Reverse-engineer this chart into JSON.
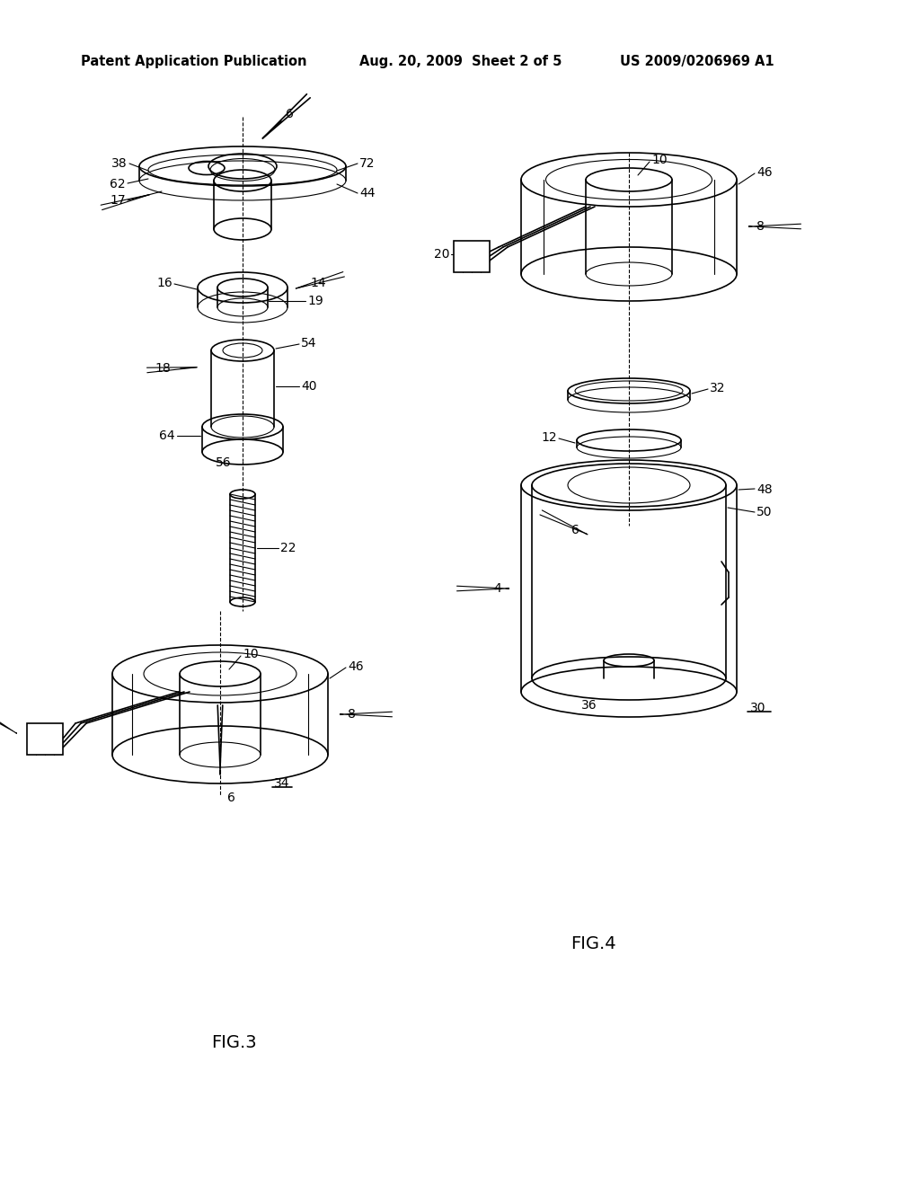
{
  "title_left": "Patent Application Publication",
  "title_center": "Aug. 20, 2009  Sheet 2 of 5",
  "title_right": "US 2009/0206969 A1",
  "fig3_label": "FIG.3",
  "fig4_label": "FIG.4",
  "bg_color": "#ffffff",
  "line_color": "#000000",
  "title_fontsize": 10.5,
  "ref_fontsize": 10
}
